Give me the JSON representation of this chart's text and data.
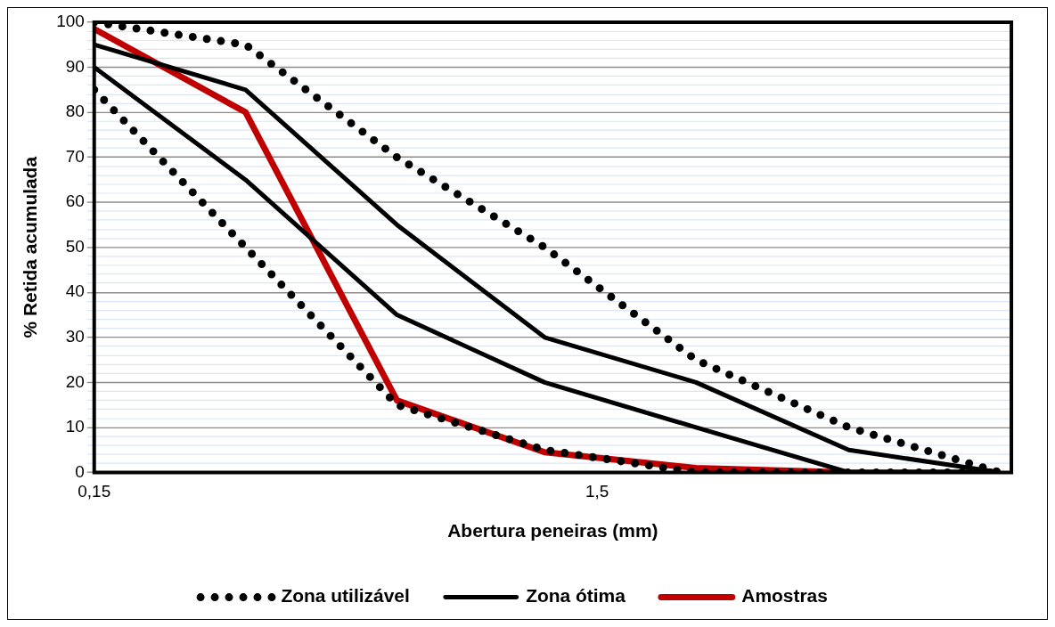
{
  "chart_data": {
    "type": "line",
    "xlabel": "Abertura peneiras (mm)",
    "ylabel": "% Retida acumulada",
    "x": [
      0.15,
      0.3,
      0.6,
      1.18,
      2.36,
      4.75,
      9.5
    ],
    "series": [
      {
        "name": "Zona utilizável",
        "color": "#000000",
        "line_style": "dotted",
        "values": [
          100,
          95,
          70,
          50,
          25,
          10,
          0
        ]
      },
      {
        "color": "#000000",
        "line_style": "dotted",
        "values": [
          85,
          50,
          15,
          5,
          0,
          0,
          0
        ]
      },
      {
        "name": "Zona ótima",
        "color": "#000000",
        "line_style": "solid",
        "values": [
          95,
          85,
          55,
          30,
          20,
          5,
          0
        ]
      },
      {
        "color": "#000000",
        "line_style": "solid",
        "values": [
          90,
          65,
          35,
          20,
          10,
          0,
          0
        ]
      },
      {
        "name": "Amostras",
        "color": "#c00000",
        "line_style": "solid",
        "values": [
          98.5,
          80,
          16,
          4.5,
          1,
          0,
          0
        ]
      }
    ],
    "log": "x",
    "xlim": [
      0.15,
      10
    ],
    "xticks": [
      {
        "value": 0.15,
        "label": "0,15"
      },
      {
        "value": 1.5,
        "label": "1,5"
      }
    ],
    "ylim": [
      0,
      100
    ],
    "yticks": [
      0,
      {
        "value": 2,
        "label": null
      },
      {
        "value": 4,
        "label": null
      },
      {
        "value": 6,
        "label": null
      },
      {
        "value": 8,
        "label": null
      },
      10,
      {
        "value": 12,
        "label": null
      },
      {
        "value": 14,
        "label": null
      },
      {
        "value": 16,
        "label": null
      },
      {
        "value": 18,
        "label": null
      },
      20,
      {
        "value": 22,
        "label": null
      },
      {
        "value": 24,
        "label": null
      },
      {
        "value": 26,
        "label": null
      },
      {
        "value": 28,
        "label": null
      },
      30,
      {
        "value": 32,
        "label": null
      },
      {
        "value": 34,
        "label": null
      },
      {
        "value": 36,
        "label": null
      },
      {
        "value": 38,
        "label": null
      },
      40,
      {
        "value": 42,
        "label": null
      },
      {
        "value": 44,
        "label": null
      },
      {
        "value": 46,
        "label": null
      },
      {
        "value": 48,
        "label": null
      },
      50,
      {
        "value": 52,
        "label": null
      },
      {
        "value": 54,
        "label": null
      },
      {
        "value": 56,
        "label": null
      },
      {
        "value": 58,
        "label": null
      },
      60,
      {
        "value": 62,
        "label": null
      },
      {
        "value": 64,
        "label": null
      },
      {
        "value": 66,
        "label": null
      },
      {
        "value": 68,
        "label": null
      },
      70,
      {
        "value": 72,
        "label": null
      },
      {
        "value": 74,
        "label": null
      },
      {
        "value": 76,
        "label": null
      },
      {
        "value": 78,
        "label": null
      },
      80,
      {
        "value": 82,
        "label": null
      },
      {
        "value": 84,
        "label": null
      },
      {
        "value": 86,
        "label": null
      },
      {
        "value": 88,
        "label": null
      },
      90,
      {
        "value": 92,
        "label": null
      },
      {
        "value": 94,
        "label": null
      },
      {
        "value": 96,
        "label": null
      },
      {
        "value": 98,
        "label": null
      },
      100
    ],
    "grid": "y",
    "legend": "bottom",
    "marker": "none"
  }
}
